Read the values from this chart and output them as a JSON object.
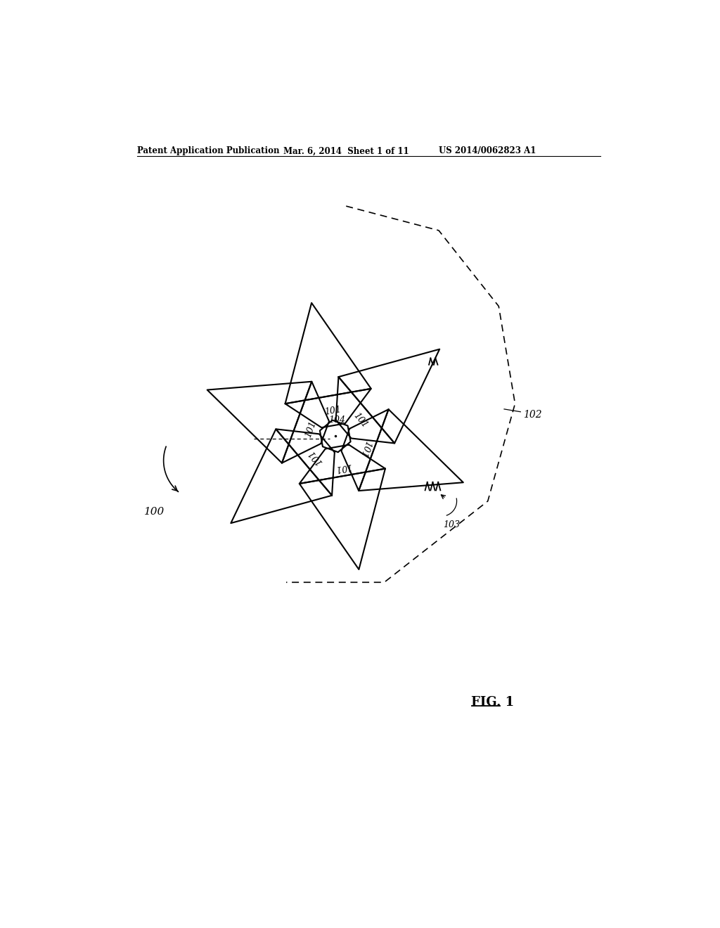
{
  "title_left": "Patent Application Publication",
  "title_mid": "Mar. 6, 2014  Sheet 1 of 11",
  "title_right": "US 2014/0062823 A1",
  "fig_label": "FIG. 1",
  "label_100": "100",
  "label_101": "101",
  "label_102": "102",
  "label_103": "103",
  "label_104": "104",
  "line_color": "#000000",
  "bg_color": "#ffffff"
}
